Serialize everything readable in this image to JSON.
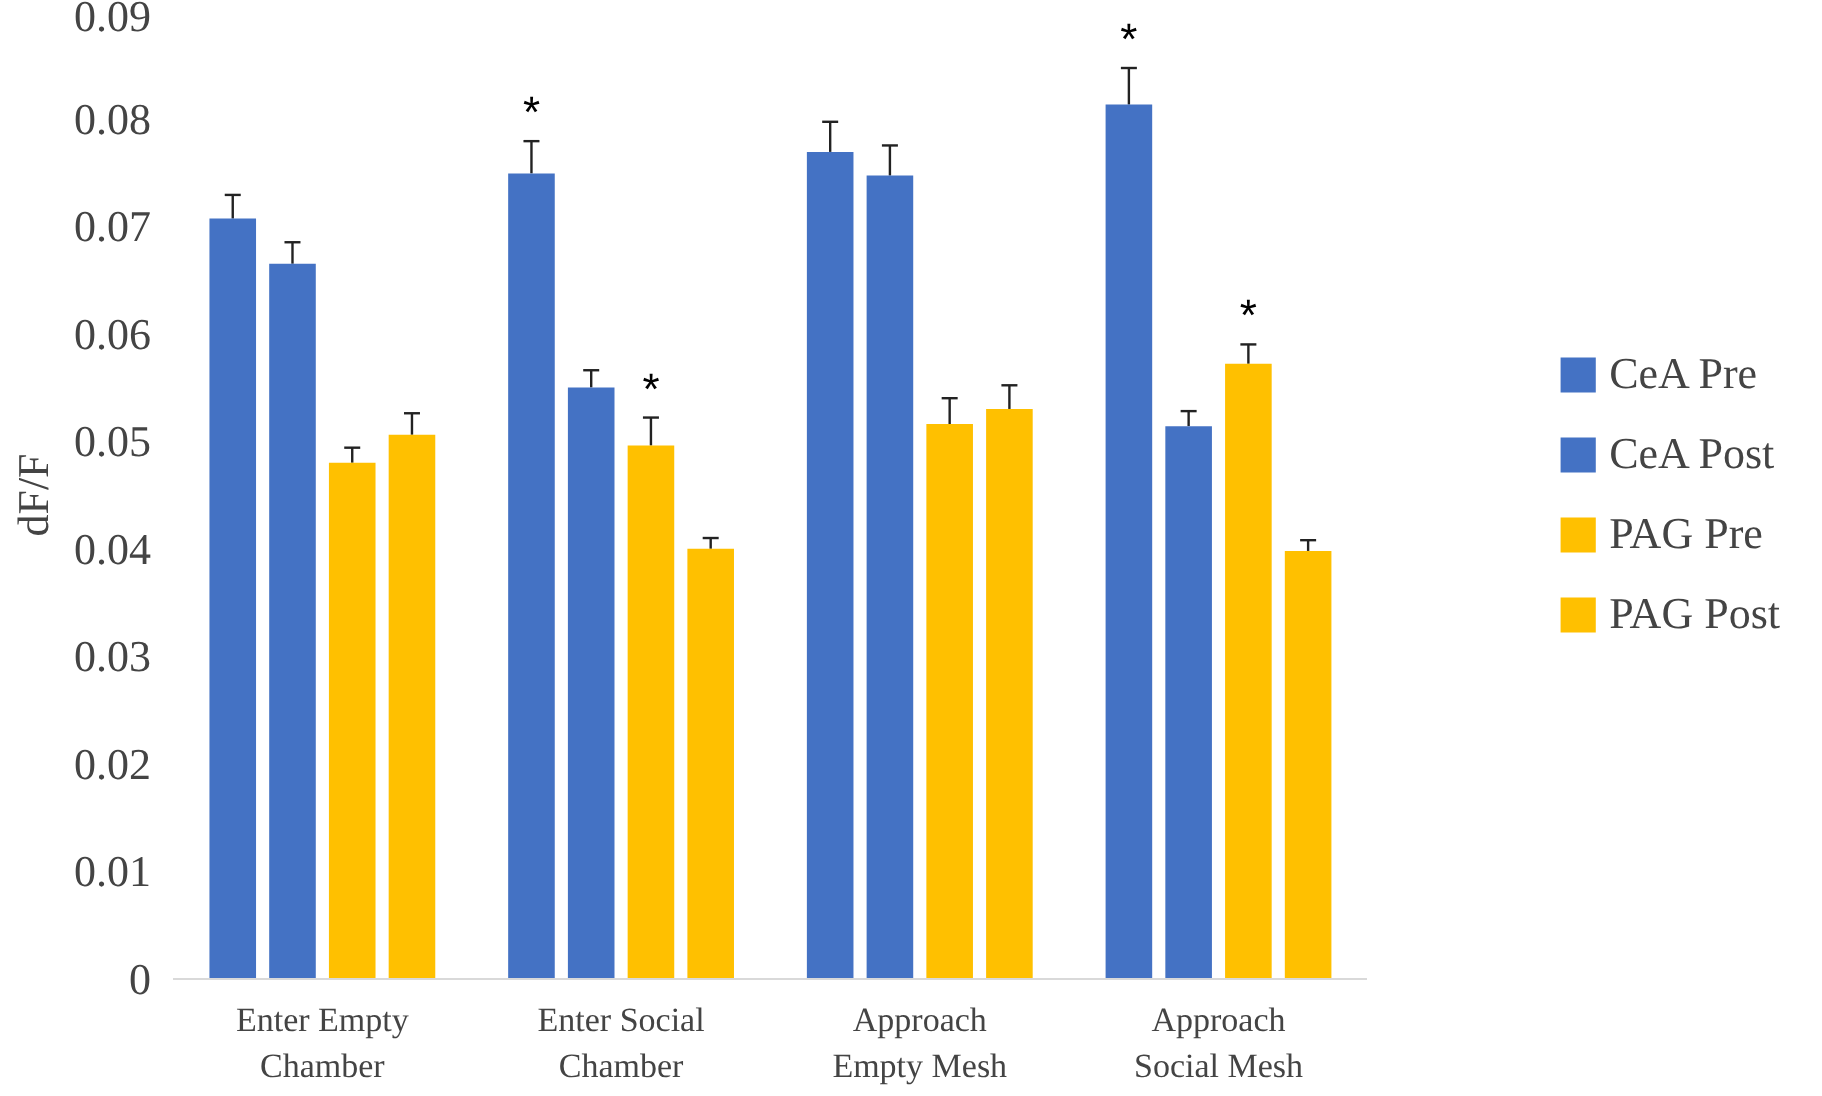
{
  "chart_data": {
    "type": "bar",
    "ylabel": "dF/F",
    "categories": [
      "Enter Empty\nChamber",
      "Enter Social\nChamber",
      "Approach\nEmpty Mesh",
      "Approach\nSocial Mesh"
    ],
    "series": [
      {
        "name": "CeA Pre",
        "color": "#4472c4",
        "values": [
          0.0707,
          0.0749,
          0.0769,
          0.0813
        ],
        "errors": [
          [
            0.0707,
            0.0729
          ],
          [
            0.0749,
            0.0779
          ],
          [
            0.0769,
            0.0797
          ],
          [
            0.0813,
            0.0847
          ]
        ],
        "value_labels": [
          null,
          "*",
          null,
          "*"
        ]
      },
      {
        "name": "CeA Post",
        "color": "#4472c4",
        "values": [
          0.0665,
          0.055,
          0.0747,
          0.0514
        ],
        "errors": [
          [
            0.0665,
            0.0685
          ],
          [
            0.055,
            0.0566
          ],
          [
            0.0747,
            0.0775
          ],
          [
            0.0514,
            0.0528
          ]
        ]
      },
      {
        "name": "PAG Pre",
        "color": "#ffc000",
        "values": [
          0.048,
          0.0496,
          0.0516,
          0.0572
        ],
        "errors": [
          [
            0.048,
            0.0494
          ],
          [
            0.0496,
            0.0522
          ],
          [
            0.0516,
            0.054
          ],
          [
            0.0572,
            0.059
          ]
        ],
        "value_labels": [
          null,
          "*",
          null,
          "*"
        ]
      },
      {
        "name": "PAG Post",
        "color": "#ffc000",
        "values": [
          0.0506,
          0.04,
          0.053,
          0.0398
        ],
        "errors": [
          [
            0.0506,
            0.0526
          ],
          [
            0.04,
            0.041
          ],
          [
            0.053,
            0.0552
          ],
          [
            0.0398,
            0.0408
          ]
        ]
      }
    ],
    "ylim": [
      0,
      0.09
    ],
    "yticks": [
      0,
      0.01,
      0.02,
      0.03,
      0.04,
      0.05,
      0.06,
      0.07,
      0.08,
      0.09
    ],
    "grid": false,
    "legend": "right"
  }
}
